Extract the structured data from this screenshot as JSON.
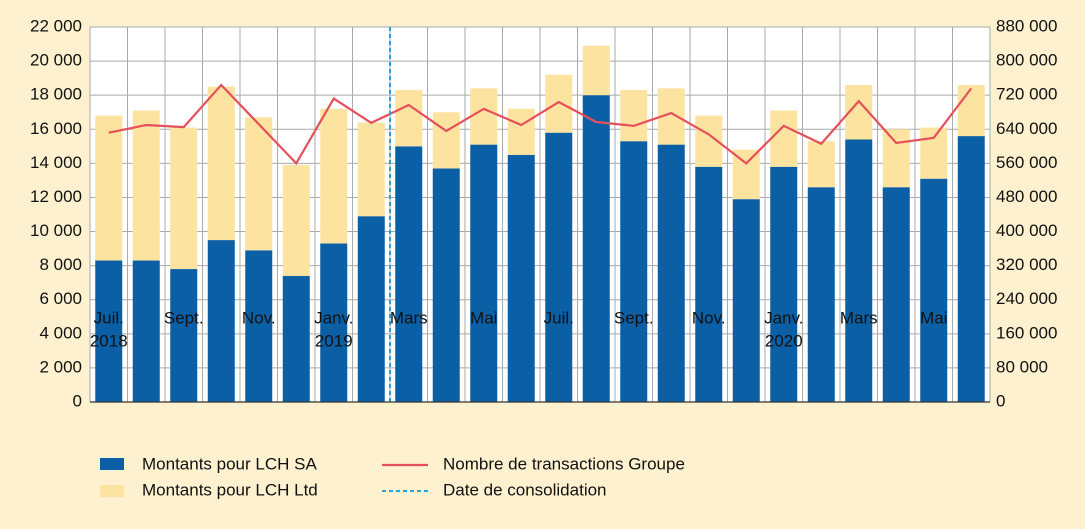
{
  "chart_data": {
    "type": "bar",
    "categories": [
      "Juil.",
      null,
      "Sept.",
      null,
      "Nov.",
      null,
      "Janv.",
      null,
      "Mars",
      null,
      "Mai",
      null,
      "Juil.",
      null,
      "Sept.",
      null,
      "Nov.",
      null,
      "Janv.",
      null,
      "Mars",
      null,
      "Mai",
      null
    ],
    "year_labels": [
      "2018",
      null,
      null,
      null,
      null,
      null,
      "2019",
      null,
      null,
      null,
      null,
      null,
      null,
      null,
      null,
      null,
      null,
      null,
      "2020",
      null,
      null,
      null,
      null,
      null
    ],
    "series": [
      {
        "name": "Montants pour LCH SA",
        "color": "#0b5fa5",
        "stack": true,
        "values": [
          8300,
          8300,
          7800,
          9500,
          8900,
          7400,
          9300,
          10900,
          15000,
          13700,
          15100,
          14500,
          15800,
          18000,
          15300,
          15100,
          13800,
          11900,
          13800,
          12600,
          15400,
          12600,
          13100,
          15600
        ]
      },
      {
        "name": "Montants pour LCH Ltd",
        "color": "#fde3a0",
        "stack": true,
        "values": [
          8500,
          8800,
          8300,
          9000,
          7800,
          6500,
          7900,
          5500,
          3300,
          3300,
          3300,
          2700,
          3400,
          2900,
          3000,
          3300,
          3000,
          2900,
          3300,
          2700,
          3200,
          3400,
          3000,
          3000
        ]
      },
      {
        "name": "Nombre de transactions Groupe",
        "color": "#e5505a",
        "type": "line",
        "axis": "y2",
        "values": [
          632000,
          650000,
          645000,
          744000,
          652000,
          560000,
          712000,
          655000,
          697000,
          636000,
          688000,
          650000,
          704000,
          657000,
          648000,
          678000,
          628000,
          560000,
          648000,
          606000,
          706000,
          608000,
          620000,
          736000
        ]
      }
    ],
    "annotation": {
      "label": "Date de consolidation",
      "color": "#2aa0d8",
      "before_index": 8
    },
    "ylim": [
      0,
      22000
    ],
    "yticks": [
      {
        "value": 0,
        "label": "0"
      },
      {
        "value": 2000,
        "label": "2 000"
      },
      {
        "value": 4000,
        "label": "4 000"
      },
      {
        "value": 6000,
        "label": "6 000"
      },
      {
        "value": 8000,
        "label": "8 000"
      },
      {
        "value": 10000,
        "label": "10 000"
      },
      {
        "value": 12000,
        "label": "12 000"
      },
      {
        "value": 14000,
        "label": "14 000"
      },
      {
        "value": 16000,
        "label": "16 000"
      },
      {
        "value": 18000,
        "label": "18 000"
      },
      {
        "value": 20000,
        "label": "20 000"
      },
      {
        "value": 22000,
        "label": "22 000"
      }
    ],
    "y2lim": [
      0,
      880000
    ],
    "y2ticks": [
      {
        "value": 0,
        "label": "0"
      },
      {
        "value": 80000,
        "label": "80 000"
      },
      {
        "value": 160000,
        "label": "160 000"
      },
      {
        "value": 240000,
        "label": "240 000"
      },
      {
        "value": 320000,
        "label": "320 000"
      },
      {
        "value": 400000,
        "label": "400 000"
      },
      {
        "value": 480000,
        "label": "480 000"
      },
      {
        "value": 560000,
        "label": "560 000"
      },
      {
        "value": 640000,
        "label": "640 000"
      },
      {
        "value": 720000,
        "label": "720 000"
      },
      {
        "value": 800000,
        "label": "800 000"
      },
      {
        "value": 880000,
        "label": "880 000"
      }
    ],
    "grid": true
  }
}
